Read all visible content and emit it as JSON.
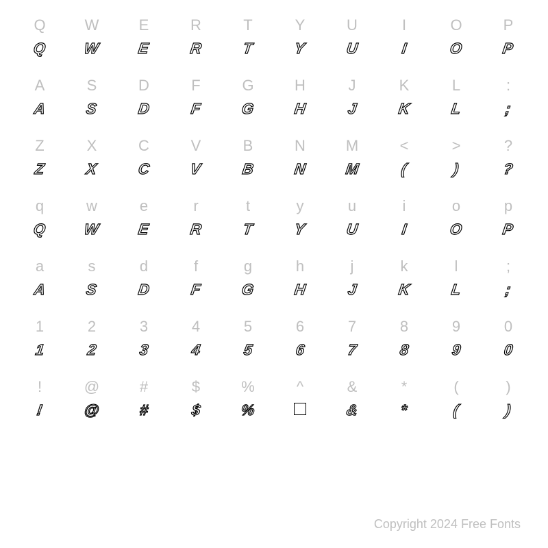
{
  "rows": [
    {
      "keys": [
        "Q",
        "W",
        "E",
        "R",
        "T",
        "Y",
        "U",
        "I",
        "O",
        "P"
      ],
      "glyphs": [
        "Q",
        "W",
        "E",
        "R",
        "T",
        "Y",
        "U",
        "I",
        "O",
        "P"
      ]
    },
    {
      "keys": [
        "A",
        "S",
        "D",
        "F",
        "G",
        "H",
        "J",
        "K",
        "L",
        ":"
      ],
      "glyphs": [
        "A",
        "S",
        "D",
        "F",
        "G",
        "H",
        "J",
        "K",
        "L",
        ";"
      ]
    },
    {
      "keys": [
        "Z",
        "X",
        "C",
        "V",
        "B",
        "N",
        "M",
        "<",
        ">",
        "?"
      ],
      "glyphs": [
        "Z",
        "X",
        "C",
        "V",
        "B",
        "N",
        "M",
        "(",
        ")",
        "?"
      ]
    },
    {
      "keys": [
        "q",
        "w",
        "e",
        "r",
        "t",
        "y",
        "u",
        "i",
        "o",
        "p"
      ],
      "glyphs": [
        "Q",
        "W",
        "E",
        "R",
        "T",
        "Y",
        "U",
        "I",
        "O",
        "P"
      ]
    },
    {
      "keys": [
        "a",
        "s",
        "d",
        "f",
        "g",
        "h",
        "j",
        "k",
        "l",
        ";"
      ],
      "glyphs": [
        "A",
        "S",
        "D",
        "F",
        "G",
        "H",
        "J",
        "K",
        "L",
        ";"
      ]
    },
    {
      "keys": [
        "1",
        "2",
        "3",
        "4",
        "5",
        "6",
        "7",
        "8",
        "9",
        "0"
      ],
      "glyphs": [
        "1",
        "2",
        "3",
        "4",
        "5",
        "6",
        "7",
        "8",
        "9",
        "0"
      ]
    },
    {
      "keys": [
        "!",
        "@",
        "#",
        "$",
        "%",
        "^",
        "&",
        "*",
        "(",
        ")"
      ],
      "glyphs": [
        "!",
        "@",
        "#",
        "$",
        "%",
        "",
        "&",
        "*",
        "(",
        ")"
      ],
      "special": {
        "5": "box"
      }
    }
  ],
  "copyright": "Copyright 2024 Free Fonts",
  "colors": {
    "label": "#bfbfbf",
    "glyph_stroke": "#000000",
    "glyph_fill": "#ffffff",
    "background": "#ffffff"
  },
  "font": {
    "label_size": 22,
    "glyph_size": 22,
    "glyph_weight": "bold",
    "glyph_style": "italic-outline"
  }
}
